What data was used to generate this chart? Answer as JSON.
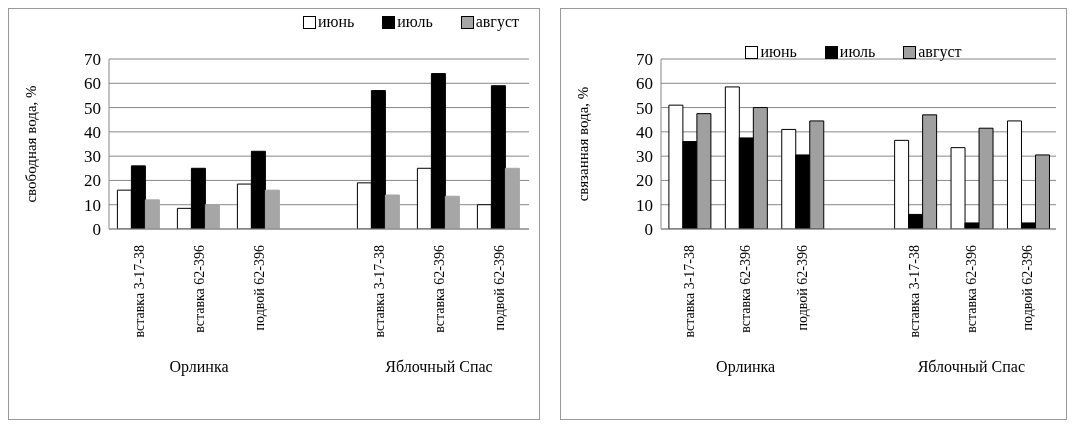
{
  "chart_data": [
    {
      "type": "bar",
      "ylabel": "свободная вода, %",
      "categories": [
        "вставка 3-17-38",
        "вставка 62-396",
        "подвой 62-396",
        null,
        "вставка 3-17-38",
        "вставка 62-396",
        "подвой 62-396"
      ],
      "annotations": [
        "Орлинка",
        "Яблочный Спас"
      ],
      "ylim": [
        0,
        70
      ],
      "yticks": [
        0,
        10,
        20,
        30,
        40,
        50,
        60,
        70
      ],
      "grid": "y",
      "legend": "top right",
      "series": [
        {
          "name": "июнь",
          "color": "#ffffff",
          "values": [
            16,
            8.5,
            18.5,
            null,
            19,
            25,
            10
          ]
        },
        {
          "name": "июль",
          "color": "#000000",
          "values": [
            26,
            25,
            32,
            null,
            57,
            64,
            59
          ]
        },
        {
          "name": "август",
          "color": "#a6a6a6",
          "values": [
            12,
            10,
            16,
            null,
            14,
            13.5,
            25
          ]
        }
      ]
    },
    {
      "type": "bar",
      "ylabel": "связанная вода, %",
      "categories": [
        "вставка 3-17-38",
        "вставка 62-396",
        "подвой 62-396",
        null,
        "вставка 3-17-38",
        "вставка 62-396",
        "подвой 62-396"
      ],
      "annotations": [
        "Орлинка",
        "Яблочный Спас"
      ],
      "ylim": [
        0,
        70
      ],
      "yticks": [
        0,
        10,
        20,
        30,
        40,
        50,
        60,
        70
      ],
      "grid": "y",
      "legend": "top",
      "series": [
        {
          "name": "июнь",
          "color": "#ffffff",
          "values": [
            51,
            58.5,
            41,
            null,
            36.5,
            33.5,
            44.5
          ]
        },
        {
          "name": "июль",
          "color": "#000000",
          "values": [
            36,
            37.5,
            30.5,
            null,
            6,
            2.5,
            2.5
          ]
        },
        {
          "name": "август",
          "color": "#a0a0a0",
          "values": [
            47.5,
            50,
            44.5,
            null,
            47,
            41.5,
            30.5
          ]
        }
      ]
    }
  ]
}
